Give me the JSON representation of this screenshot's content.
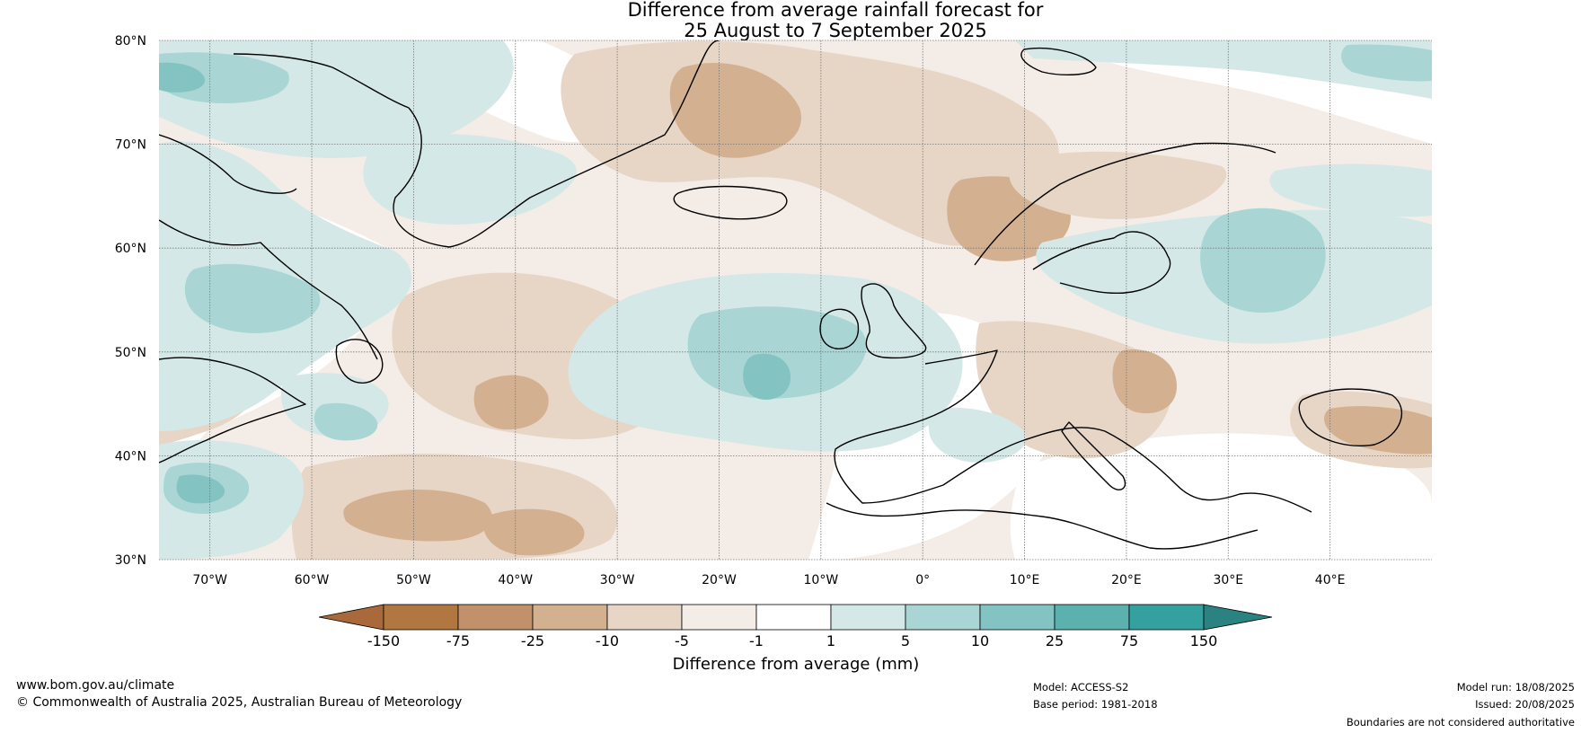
{
  "header": {
    "title_line1": "Difference from average rainfall forecast for",
    "title_line2": "25 August to 7 September 2025"
  },
  "map": {
    "lat_labels": [
      "80°N",
      "70°N",
      "60°N",
      "50°N",
      "40°N",
      "30°N"
    ],
    "lon_labels": [
      "70°W",
      "60°W",
      "50°W",
      "40°W",
      "30°W",
      "20°W",
      "10°W",
      "0°",
      "10°E",
      "20°E",
      "30°E",
      "40°E"
    ],
    "lat_range": [
      30,
      80
    ],
    "lon_range": [
      -75,
      50
    ]
  },
  "colorbar": {
    "label": "Difference from average (mm)",
    "ticks": [
      "-150",
      "-75",
      "-25",
      "-10",
      "-5",
      "-1",
      "1",
      "5",
      "10",
      "25",
      "75",
      "150"
    ],
    "colors": [
      "#a9693a",
      "#b17740",
      "#c1916c",
      "#d3b190",
      "#e7d6c6",
      "#f4ece6",
      "#ffffff",
      "#d4e9e7",
      "#a9d6d4",
      "#83c3c1",
      "#5bb1ae",
      "#35a19f",
      "#2a8380"
    ]
  },
  "footer": {
    "website": "www.bom.gov.au/climate",
    "copyright": "© Commonwealth of Australia 2025, Australian Bureau of Meteorology",
    "model": "Model: ACCESS-S2",
    "base_period": "Base period: 1981-2018",
    "model_run": "Model run: 18/08/2025",
    "issued": "Issued: 20/08/2025",
    "disclaimer": "Boundaries are not considered authoritative"
  }
}
